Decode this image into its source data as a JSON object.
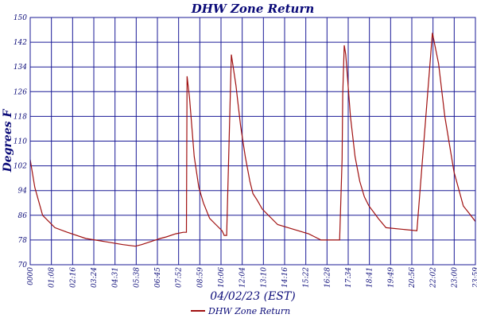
{
  "chart_data": {
    "type": "line",
    "title": "DHW Zone Return",
    "xlabel": "04/02/23 (EST)",
    "ylabel": "Degrees F",
    "ylim": [
      70,
      150
    ],
    "yticks": [
      70,
      78,
      86,
      94,
      102,
      110,
      118,
      126,
      134,
      142,
      150
    ],
    "xlim_minutes": [
      0,
      1439
    ],
    "xticks": [
      "0000",
      "01:08",
      "02:16",
      "03:24",
      "04:31",
      "05:38",
      "06:45",
      "07:52",
      "08:59",
      "10:06",
      "12:04",
      "13:10",
      "14:16",
      "15:22",
      "16:28",
      "17:34",
      "18:41",
      "19:49",
      "20:56",
      "22:02",
      "23:00",
      "23:59"
    ],
    "grid": true,
    "legend_position": "bottom-center",
    "line_color": "#a01010",
    "grid_color": "#1a1a96",
    "series": [
      {
        "name": "DHW Zone Return",
        "x_minutes": [
          0,
          15,
          40,
          80,
          120,
          180,
          240,
          300,
          340,
          360,
          405,
          420,
          440,
          470,
          495,
          505,
          507,
          515,
          530,
          545,
          560,
          580,
          600,
          620,
          625,
          627,
          635,
          650,
          665,
          680,
          695,
          710,
          720,
          733,
          750,
          800,
          850,
          900,
          920,
          940,
          960,
          980,
          1000,
          1008,
          1010,
          1015,
          1020,
          1035,
          1050,
          1065,
          1080,
          1095,
          1110,
          1125,
          1150,
          1200,
          1250,
          1300,
          1320,
          1340,
          1370,
          1400,
          1420,
          1439
        ],
        "y": [
          104,
          95,
          86,
          82,
          80.5,
          78.5,
          77.5,
          76.5,
          76,
          76.5,
          78,
          78.5,
          79,
          80,
          80.5,
          80.5,
          131,
          124,
          105,
          95,
          90,
          85,
          83,
          81,
          80,
          79.5,
          79.5,
          138,
          128,
          115,
          105,
          97,
          93,
          91,
          88,
          83,
          81.5,
          80,
          79,
          78,
          78,
          78,
          78,
          104,
          125,
          141,
          138,
          118,
          105,
          97,
          92,
          89,
          87,
          85,
          82,
          81.5,
          81,
          145,
          135,
          118,
          100,
          89,
          86.5,
          84
        ]
      }
    ],
    "legend_label": "DHW Zone Return"
  }
}
